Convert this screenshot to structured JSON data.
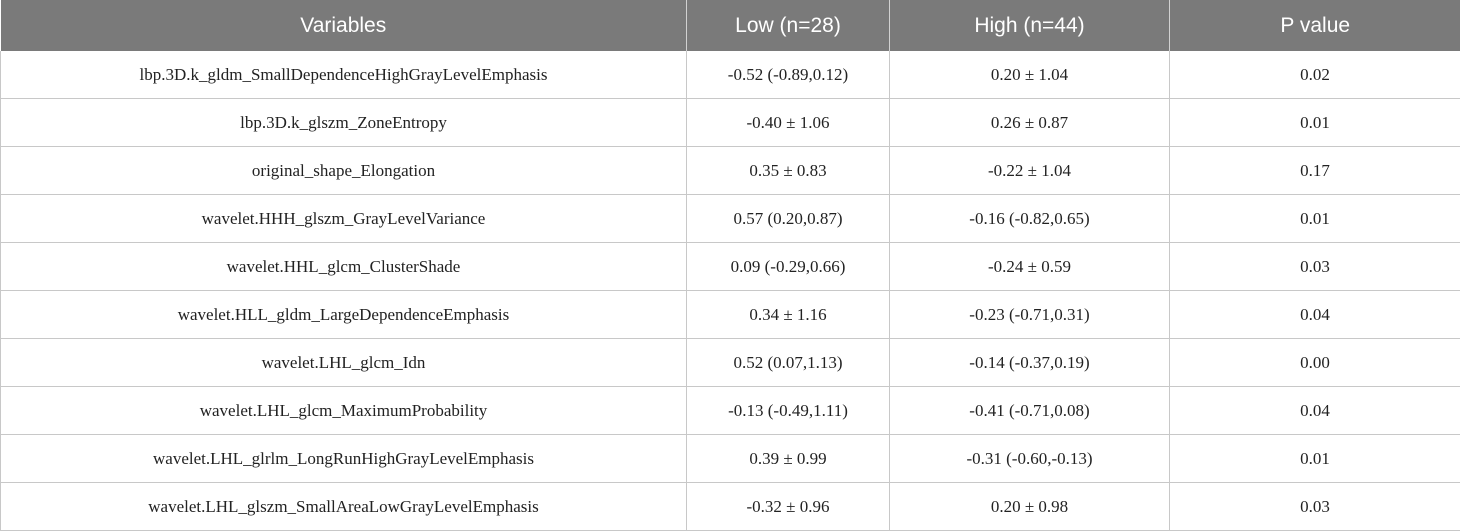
{
  "table": {
    "headers": [
      "Variables",
      "Low (n=28)",
      "High (n=44)",
      "P value"
    ],
    "rows": [
      [
        "lbp.3D.k_gldm_SmallDependenceHighGrayLevelEmphasis",
        "-0.52 (-0.89,0.12)",
        "0.20 ± 1.04",
        "0.02"
      ],
      [
        "lbp.3D.k_glszm_ZoneEntropy",
        "-0.40 ± 1.06",
        "0.26 ± 0.87",
        "0.01"
      ],
      [
        "original_shape_Elongation",
        "0.35 ± 0.83",
        "-0.22 ± 1.04",
        "0.17"
      ],
      [
        "wavelet.HHH_glszm_GrayLevelVariance",
        "0.57 (0.20,0.87)",
        "-0.16 (-0.82,0.65)",
        "0.01"
      ],
      [
        "wavelet.HHL_glcm_ClusterShade",
        "0.09 (-0.29,0.66)",
        "-0.24 ± 0.59",
        "0.03"
      ],
      [
        "wavelet.HLL_gldm_LargeDependenceEmphasis",
        "0.34 ± 1.16",
        "-0.23 (-0.71,0.31)",
        "0.04"
      ],
      [
        "wavelet.LHL_glcm_Idn",
        "0.52 (0.07,1.13)",
        "-0.14 (-0.37,0.19)",
        "0.00"
      ],
      [
        "wavelet.LHL_glcm_MaximumProbability",
        "-0.13 (-0.49,1.11)",
        "-0.41 (-0.71,0.08)",
        "0.04"
      ],
      [
        "wavelet.LHL_glrlm_LongRunHighGrayLevelEmphasis",
        "0.39 ± 0.99",
        "-0.31 (-0.60,-0.13)",
        "0.01"
      ],
      [
        "wavelet.LHL_glszm_SmallAreaLowGrayLevelEmphasis",
        "-0.32 ± 0.96",
        "0.20 ± 0.98",
        "0.03"
      ]
    ]
  },
  "colors": {
    "header_background": "#7a7a7a",
    "header_text": "#ffffff",
    "grid_line": "#c8c8c8",
    "body_text": "#222222"
  }
}
